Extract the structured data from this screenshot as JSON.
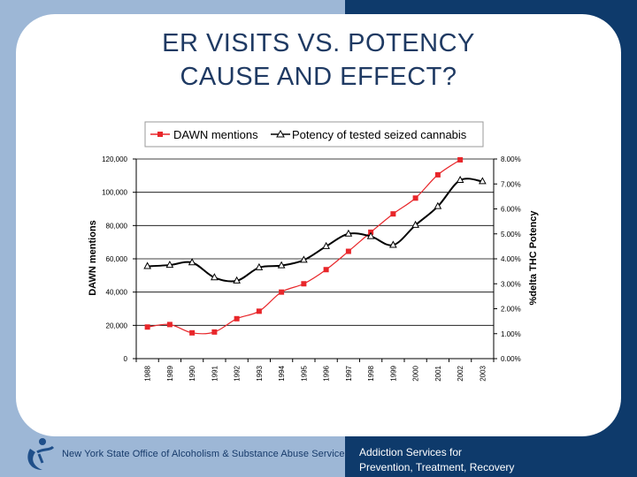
{
  "slide": {
    "title_line1": "ER VISITS VS. POTENCY",
    "title_line2": "CAUSE AND EFFECT?"
  },
  "footer": {
    "org_name": "New York State Office of Alcoholism & Substance Abuse Services",
    "tagline_line1": "Addiction Services for",
    "tagline_line2": "Prevention, Treatment, Recovery",
    "logo_icon": "figure-swoosh-logo"
  },
  "colors": {
    "left_panel": "#9db7d6",
    "right_panel": "#0e3a6b",
    "dawn_series": "#e8262a",
    "potency_series": "#000000",
    "title_text": "#1f3a63"
  },
  "chart_data": {
    "type": "line",
    "title": "",
    "categories": [
      "1988",
      "1989",
      "1990",
      "1991",
      "1992",
      "1993",
      "1994",
      "1995",
      "1996",
      "1997",
      "1998",
      "1999",
      "2000",
      "2001",
      "2002",
      "2003"
    ],
    "series": [
      {
        "name": "DAWN mentions",
        "axis": "left",
        "marker": "square",
        "values": [
          19000,
          20500,
          15500,
          16000,
          24000,
          28500,
          40000,
          45000,
          53500,
          64500,
          76000,
          87000,
          96500,
          110500,
          119500,
          null
        ]
      },
      {
        "name": "Potency of tested seized cannabis",
        "axis": "right",
        "marker": "triangle",
        "values": [
          3.7,
          3.75,
          3.85,
          3.25,
          3.12,
          3.65,
          3.73,
          3.95,
          4.5,
          5.0,
          4.9,
          4.55,
          5.35,
          6.1,
          7.15,
          7.1
        ]
      }
    ],
    "ylabel": "DAWN mentions",
    "y2label": "%delta THC Potency",
    "ylim": [
      0,
      120000
    ],
    "y2lim": [
      0,
      8
    ],
    "yticks": [
      "0",
      "20,000",
      "40,000",
      "60,000",
      "80,000",
      "100,000",
      "120,000"
    ],
    "y2ticks": [
      "0.00%",
      "1.00%",
      "2.00%",
      "3.00%",
      "4.00%",
      "5.00%",
      "6.00%",
      "7.00%",
      "8.00%"
    ],
    "legend": {
      "placement": "top",
      "entries": [
        "DAWN mentions",
        "Potency of tested seized cannabis"
      ]
    },
    "grid": true
  }
}
